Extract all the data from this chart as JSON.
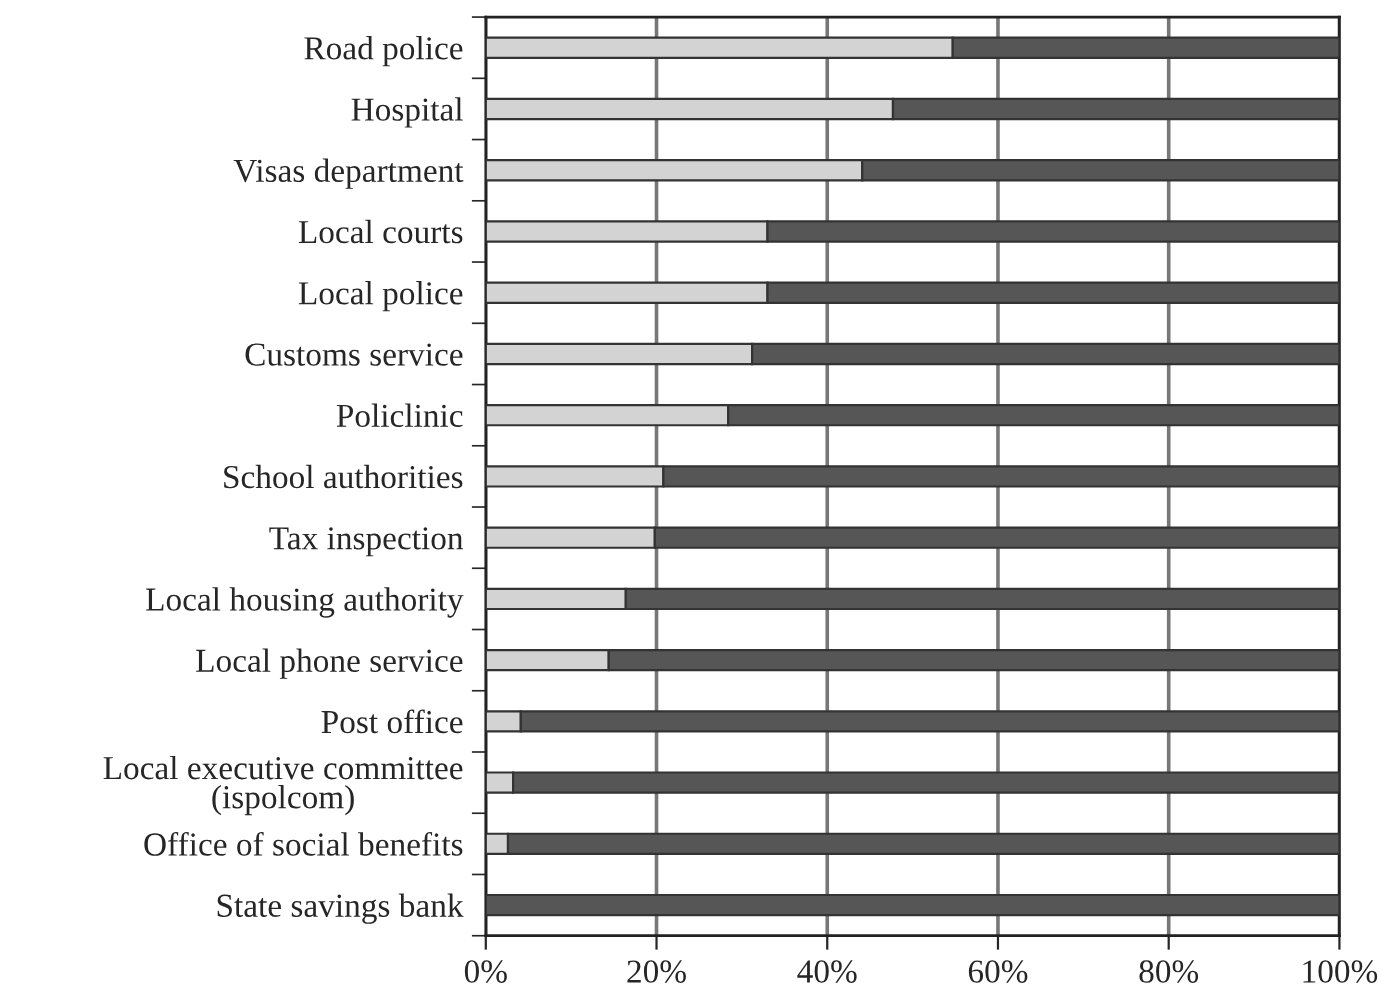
{
  "chart_data": {
    "type": "bar",
    "orientation": "horizontal",
    "stacked": true,
    "categories": [
      "Road police",
      "Hospital",
      "Visas department",
      "Local courts",
      "Local police",
      "Customs service",
      "Policlinic",
      "School authorities",
      "Tax inspection",
      "Local housing authority",
      "Local phone service",
      "Post office",
      "Local executive committee\n(ispolcom)",
      "Office of social benefits",
      "State savings bank"
    ],
    "series": [
      {
        "color": "#d3d3d3",
        "values": [
          54.7,
          47.7,
          44.1,
          33.0,
          33.0,
          31.2,
          28.4,
          20.8,
          19.8,
          16.4,
          14.4,
          4.1,
          3.2,
          2.6,
          null
        ]
      },
      {
        "color": "#565656",
        "values": [
          45.3,
          52.3,
          55.9,
          67.0,
          67.0,
          68.8,
          71.6,
          79.2,
          80.2,
          83.6,
          85.6,
          95.9,
          96.8,
          97.4,
          100
        ]
      }
    ],
    "xlim": [
      0,
      100
    ],
    "xticks": [
      {
        "value": 0,
        "label": "0%"
      },
      {
        "value": 20,
        "label": "20%"
      },
      {
        "value": 40,
        "label": "40%"
      },
      {
        "value": 60,
        "label": "60%"
      },
      {
        "value": 80,
        "label": "80%"
      },
      {
        "value": 100,
        "label": "100%"
      }
    ],
    "grid": "x"
  }
}
